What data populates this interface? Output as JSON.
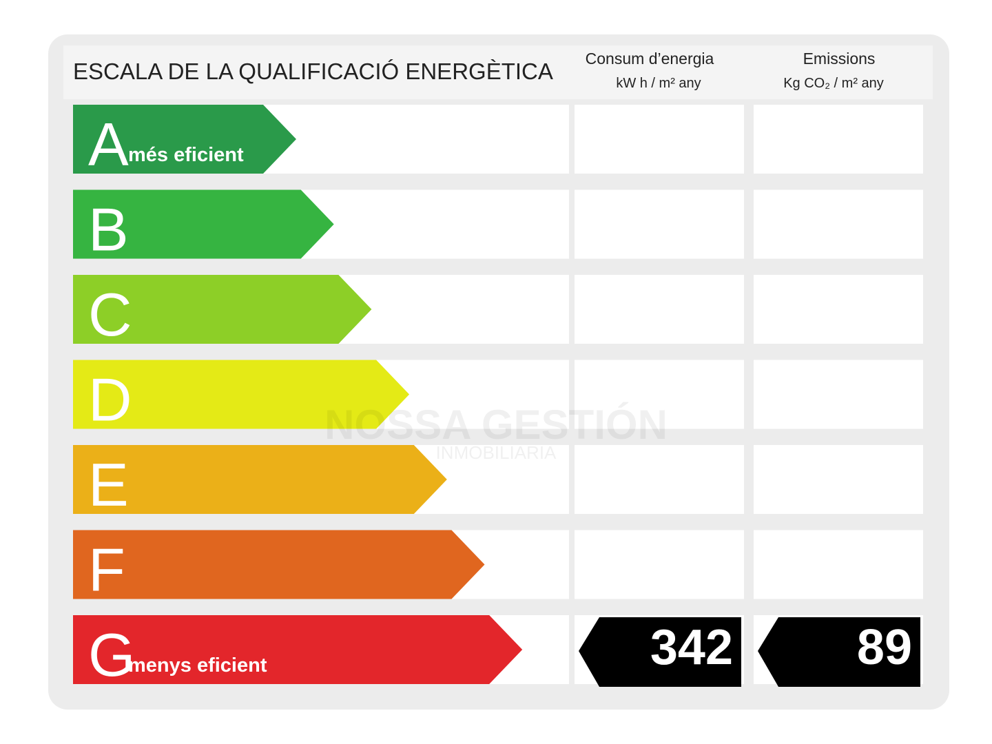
{
  "title": "ESCALA DE LA QUALIFICACIÓ ENERGÈTICA",
  "columns": [
    {
      "title": "Consum d’energia",
      "unit": "kW h / m² any"
    },
    {
      "title": "Emissions",
      "unit": "Kg CO₂ / m² any"
    }
  ],
  "rows": [
    {
      "letter": "A",
      "label": "més eficient",
      "color": "#2a9a4a"
    },
    {
      "letter": "B",
      "color": "#36b441"
    },
    {
      "letter": "C",
      "color": "#8dcf27"
    },
    {
      "letter": "D",
      "color": "#e4ea16"
    },
    {
      "letter": "E",
      "color": "#ebb018"
    },
    {
      "letter": "F",
      "color": "#e0661f"
    },
    {
      "letter": "G",
      "label": "menys eficient",
      "color": "#e3262b",
      "values": [
        342,
        89
      ]
    }
  ],
  "watermark": {
    "name": "NOSSA GESTIÓN",
    "subtitle": "INMOBILIARIA"
  }
}
